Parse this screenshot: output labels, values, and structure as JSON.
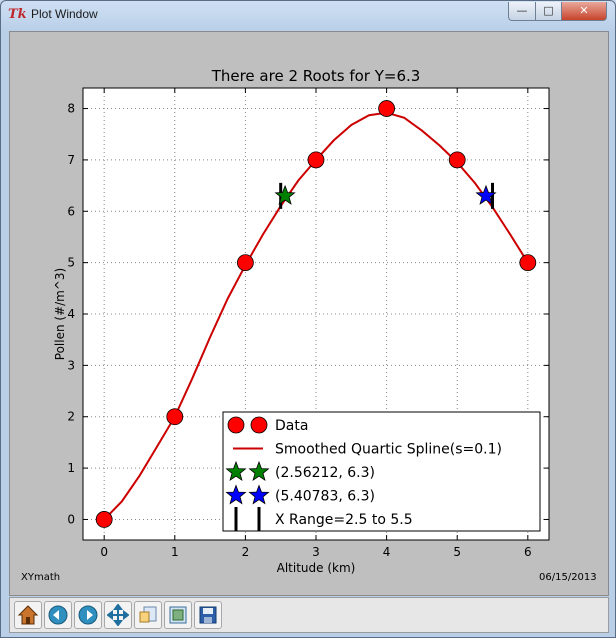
{
  "window": {
    "title": "Plot Window",
    "icon": "tk-feather-icon"
  },
  "footer": {
    "left": "XYmath",
    "right": "06/15/2013"
  },
  "toolbar": {
    "buttons": [
      {
        "name": "home-icon"
      },
      {
        "name": "back-arrow-icon"
      },
      {
        "name": "forward-arrow-icon"
      },
      {
        "name": "pan-icon"
      },
      {
        "name": "zoom-icon"
      },
      {
        "name": "subplots-config-icon"
      },
      {
        "name": "save-icon"
      }
    ]
  },
  "chart_data": {
    "type": "line",
    "title": "There are 2 Roots for Y=6.3",
    "xlabel": "Altitude (km)",
    "ylabel": "Pollen (#/m^3)",
    "xlim": [
      -0.3,
      6.3
    ],
    "ylim": [
      -0.4,
      8.4
    ],
    "xticks": [
      "0",
      "1",
      "2",
      "3",
      "4",
      "5",
      "6"
    ],
    "yticks": [
      "0",
      "1",
      "2",
      "3",
      "4",
      "5",
      "6",
      "7",
      "8"
    ],
    "grid": true,
    "legend_position": "lower-right",
    "colors": {
      "data": "#ff0000",
      "spline": "#cc0000",
      "root1": "#008000",
      "root2": "#0000ff",
      "range": "#000000"
    },
    "series": [
      {
        "name": "Data",
        "x": [
          0,
          1,
          2,
          3,
          4,
          5,
          6
        ],
        "y": [
          0,
          2,
          5,
          7,
          8,
          7,
          5
        ]
      },
      {
        "name": "Smoothed Quartic Spline(s=0.1)",
        "x": [
          0,
          0.25,
          0.5,
          0.75,
          1,
          1.25,
          1.5,
          1.75,
          2,
          2.25,
          2.5,
          2.75,
          3,
          3.25,
          3.5,
          3.75,
          4,
          4.25,
          4.5,
          4.75,
          5,
          5.25,
          5.5,
          5.75,
          6
        ],
        "y": [
          0,
          0.35,
          0.85,
          1.42,
          2.0,
          2.75,
          3.55,
          4.3,
          4.95,
          5.55,
          6.1,
          6.6,
          7.0,
          7.38,
          7.68,
          7.87,
          7.92,
          7.82,
          7.57,
          7.28,
          6.95,
          6.55,
          6.08,
          5.55,
          5.0
        ]
      },
      {
        "name": "(2.56212, 6.3)",
        "x": [
          2.56212
        ],
        "y": [
          6.3
        ]
      },
      {
        "name": "(5.40783, 6.3)",
        "x": [
          5.40783
        ],
        "y": [
          6.3
        ]
      },
      {
        "name": "X Range=2.5 to 5.5",
        "x": [
          2.5,
          5.5
        ]
      }
    ]
  }
}
